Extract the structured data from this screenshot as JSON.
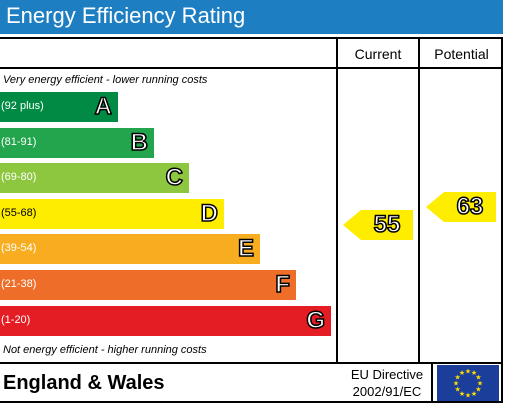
{
  "header": {
    "title": "Energy Efficiency Rating"
  },
  "columns": {
    "current": "Current",
    "potential": "Potential"
  },
  "captions": {
    "top": "Very energy efficient - lower running costs",
    "bottom": "Not energy efficient - higher running costs"
  },
  "bands": [
    {
      "range": "(92 plus)",
      "letter": "A",
      "color": "#008a43"
    },
    {
      "range": "(81-91)",
      "letter": "B",
      "color": "#22a54d"
    },
    {
      "range": "(69-80)",
      "letter": "C",
      "color": "#8dc63f"
    },
    {
      "range": "(55-68)",
      "letter": "D",
      "color": "#ffed00"
    },
    {
      "range": "(39-54)",
      "letter": "E",
      "color": "#f7ad1f"
    },
    {
      "range": "(21-38)",
      "letter": "F",
      "color": "#ee6e29"
    },
    {
      "range": "(1-20)",
      "letter": "G",
      "color": "#e31d23"
    }
  ],
  "ratings": {
    "current": {
      "value": "55",
      "color": "#ffed00"
    },
    "potential": {
      "value": "63",
      "color": "#ffed00"
    }
  },
  "footer": {
    "region": "England & Wales",
    "directive_line1": "EU Directive",
    "directive_line2": "2002/91/EC"
  }
}
